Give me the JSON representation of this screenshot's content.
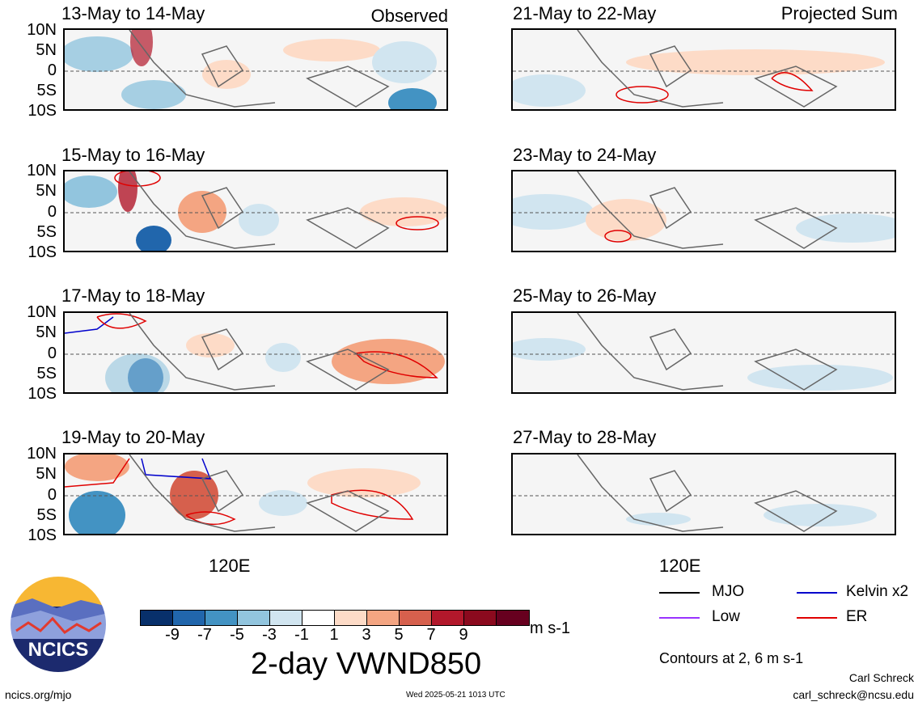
{
  "panels_left": [
    {
      "title": "13-May to 14-May",
      "corner": "Observed"
    },
    {
      "title": "15-May to 16-May",
      "corner": ""
    },
    {
      "title": "17-May to 18-May",
      "corner": ""
    },
    {
      "title": "19-May to 20-May",
      "corner": ""
    }
  ],
  "panels_right": [
    {
      "title": "21-May to 22-May",
      "corner": "Projected Sum"
    },
    {
      "title": "23-May to 24-May",
      "corner": ""
    },
    {
      "title": "25-May to 26-May",
      "corner": ""
    },
    {
      "title": "27-May to 28-May",
      "corner": ""
    }
  ],
  "lat_labels": [
    "10N",
    "5N",
    "0",
    "5S",
    "10S"
  ],
  "lon_label": "120E",
  "colorbar": {
    "colors": [
      "#08306b",
      "#2166ac",
      "#4393c3",
      "#92c5de",
      "#d1e5f0",
      "#ffffff",
      "#fddbc7",
      "#f4a582",
      "#d6604d",
      "#b2182b",
      "#8b0a1e",
      "#67001f"
    ],
    "ticks": [
      "-9",
      "-7",
      "-5",
      "-3",
      "-1",
      "1",
      "3",
      "5",
      "7",
      "9"
    ],
    "units": "m s-1",
    "title": "2-day VWND850"
  },
  "legend": [
    {
      "label": "MJO",
      "color": "#000000"
    },
    {
      "label": "Kelvin x2",
      "color": "#0000cc"
    },
    {
      "label": "Low",
      "color": "#9933ff"
    },
    {
      "label": "ER",
      "color": "#e00000"
    }
  ],
  "contour_note": "Contours at 2, 6 m s-1",
  "logo_text": "NCICS",
  "footer": {
    "url": "ncics.org/mjo",
    "timestamp": "Wed 2025-05-21 1013 UTC",
    "author": "Carl Schreck",
    "email": "carl_schreck@ncsu.edu"
  }
}
